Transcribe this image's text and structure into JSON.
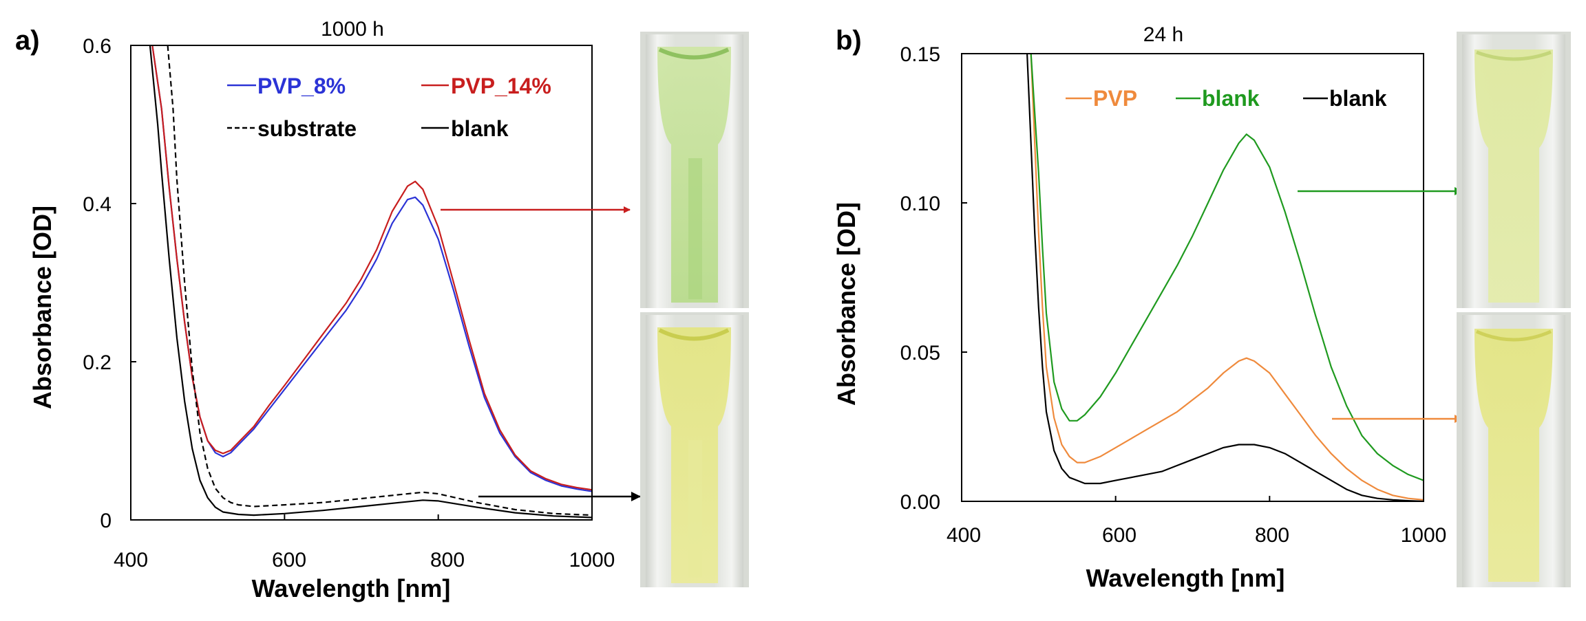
{
  "chart_data": [
    {
      "type": "line",
      "panel_label": "a)",
      "title": "1000 h",
      "xlabel": "Wavelength [nm]",
      "ylabel": "Absorbance [OD]",
      "xlim": [
        400,
        1000
      ],
      "ylim": [
        0,
        0.6
      ],
      "xticks": [
        "400",
        "600",
        "800",
        "1000"
      ],
      "yticks": [
        "0",
        "0.2",
        "0.4",
        "0.6"
      ],
      "grid": false,
      "legend_position": "top",
      "series": [
        {
          "name": "PVP_8%",
          "color": "#2b33d6",
          "dash": "solid",
          "x": [
            428,
            440,
            450,
            460,
            470,
            480,
            490,
            500,
            510,
            520,
            530,
            540,
            550,
            560,
            580,
            600,
            620,
            640,
            660,
            680,
            700,
            720,
            740,
            760,
            770,
            780,
            800,
            820,
            840,
            860,
            880,
            900,
            920,
            940,
            960,
            980,
            1000
          ],
          "y": [
            0.6,
            0.52,
            0.42,
            0.33,
            0.25,
            0.18,
            0.13,
            0.1,
            0.085,
            0.08,
            0.085,
            0.095,
            0.105,
            0.115,
            0.14,
            0.165,
            0.19,
            0.215,
            0.24,
            0.265,
            0.295,
            0.33,
            0.375,
            0.405,
            0.408,
            0.398,
            0.355,
            0.29,
            0.22,
            0.155,
            0.11,
            0.08,
            0.06,
            0.05,
            0.043,
            0.039,
            0.036
          ]
        },
        {
          "name": "PVP_14%",
          "color": "#c81e1e",
          "dash": "solid",
          "x": [
            428,
            440,
            450,
            460,
            470,
            480,
            490,
            500,
            510,
            520,
            530,
            540,
            550,
            560,
            580,
            600,
            620,
            640,
            660,
            680,
            700,
            720,
            740,
            760,
            770,
            780,
            800,
            820,
            840,
            860,
            880,
            900,
            920,
            940,
            960,
            980,
            1000
          ],
          "y": [
            0.6,
            0.52,
            0.42,
            0.33,
            0.25,
            0.18,
            0.13,
            0.1,
            0.088,
            0.084,
            0.088,
            0.098,
            0.108,
            0.118,
            0.145,
            0.17,
            0.196,
            0.222,
            0.248,
            0.274,
            0.305,
            0.342,
            0.39,
            0.422,
            0.428,
            0.418,
            0.37,
            0.3,
            0.228,
            0.16,
            0.114,
            0.082,
            0.062,
            0.052,
            0.045,
            0.041,
            0.038
          ]
        },
        {
          "name": "substrate",
          "color": "#000000",
          "dash": "dashed",
          "x": [
            448,
            455,
            460,
            470,
            480,
            490,
            500,
            510,
            520,
            530,
            540,
            560,
            600,
            650,
            700,
            750,
            780,
            800,
            850,
            900,
            950,
            1000
          ],
          "y": [
            0.6,
            0.52,
            0.43,
            0.3,
            0.19,
            0.11,
            0.065,
            0.04,
            0.028,
            0.022,
            0.019,
            0.017,
            0.019,
            0.022,
            0.027,
            0.032,
            0.035,
            0.033,
            0.022,
            0.013,
            0.008,
            0.006
          ]
        },
        {
          "name": "blank",
          "color": "#000000",
          "dash": "solid",
          "x": [
            425,
            435,
            440,
            450,
            460,
            470,
            480,
            490,
            500,
            510,
            520,
            540,
            560,
            600,
            650,
            700,
            750,
            780,
            800,
            850,
            900,
            950,
            1000
          ],
          "y": [
            0.6,
            0.5,
            0.44,
            0.33,
            0.23,
            0.15,
            0.09,
            0.05,
            0.028,
            0.016,
            0.01,
            0.007,
            0.006,
            0.008,
            0.012,
            0.017,
            0.022,
            0.025,
            0.024,
            0.016,
            0.009,
            0.005,
            0.003
          ]
        }
      ]
    },
    {
      "type": "line",
      "panel_label": "b)",
      "title": "24 h",
      "xlabel": "Wavelength [nm]",
      "ylabel": "Absorbance [OD]",
      "xlim": [
        400,
        1000
      ],
      "ylim": [
        0,
        0.15
      ],
      "xticks": [
        "400",
        "600",
        "800",
        "1000"
      ],
      "yticks": [
        "0.00",
        "0.05",
        "0.10",
        "0.15"
      ],
      "grid": false,
      "legend_position": "top",
      "series": [
        {
          "name": "PVP",
          "color": "#ef8a3c",
          "dash": "solid",
          "x": [
            490,
            495,
            500,
            505,
            510,
            520,
            530,
            540,
            550,
            560,
            580,
            600,
            620,
            640,
            660,
            680,
            700,
            720,
            740,
            760,
            770,
            780,
            800,
            820,
            840,
            860,
            880,
            900,
            920,
            940,
            960,
            980,
            1000
          ],
          "y": [
            0.15,
            0.12,
            0.09,
            0.065,
            0.045,
            0.028,
            0.019,
            0.015,
            0.013,
            0.013,
            0.015,
            0.018,
            0.021,
            0.024,
            0.027,
            0.03,
            0.034,
            0.038,
            0.043,
            0.047,
            0.048,
            0.047,
            0.043,
            0.036,
            0.029,
            0.022,
            0.016,
            0.011,
            0.007,
            0.004,
            0.002,
            0.001,
            0.0005
          ]
        },
        {
          "name": "blank",
          "color": "#1f9a1f",
          "dash": "solid",
          "x": [
            490,
            495,
            500,
            505,
            510,
            520,
            530,
            540,
            550,
            560,
            580,
            600,
            620,
            640,
            660,
            680,
            700,
            720,
            740,
            760,
            770,
            780,
            800,
            820,
            840,
            860,
            880,
            900,
            920,
            940,
            960,
            980,
            1000
          ],
          "y": [
            0.15,
            0.13,
            0.11,
            0.085,
            0.063,
            0.04,
            0.031,
            0.027,
            0.027,
            0.029,
            0.035,
            0.043,
            0.052,
            0.061,
            0.07,
            0.079,
            0.089,
            0.1,
            0.111,
            0.12,
            0.123,
            0.121,
            0.112,
            0.097,
            0.08,
            0.062,
            0.045,
            0.032,
            0.022,
            0.016,
            0.012,
            0.009,
            0.007
          ]
        },
        {
          "name": "blank",
          "color": "#000000",
          "dash": "solid",
          "x": [
            485,
            490,
            495,
            500,
            505,
            510,
            520,
            530,
            540,
            550,
            560,
            580,
            600,
            620,
            640,
            660,
            680,
            700,
            720,
            740,
            760,
            780,
            800,
            820,
            840,
            860,
            880,
            900,
            920,
            940,
            960,
            980,
            1000
          ],
          "y": [
            0.15,
            0.12,
            0.09,
            0.065,
            0.045,
            0.03,
            0.017,
            0.011,
            0.008,
            0.007,
            0.006,
            0.006,
            0.007,
            0.008,
            0.009,
            0.01,
            0.012,
            0.014,
            0.016,
            0.018,
            0.019,
            0.019,
            0.018,
            0.016,
            0.013,
            0.01,
            0.007,
            0.004,
            0.002,
            0.001,
            0.0005,
            0.0002,
            0
          ]
        }
      ]
    }
  ]
}
